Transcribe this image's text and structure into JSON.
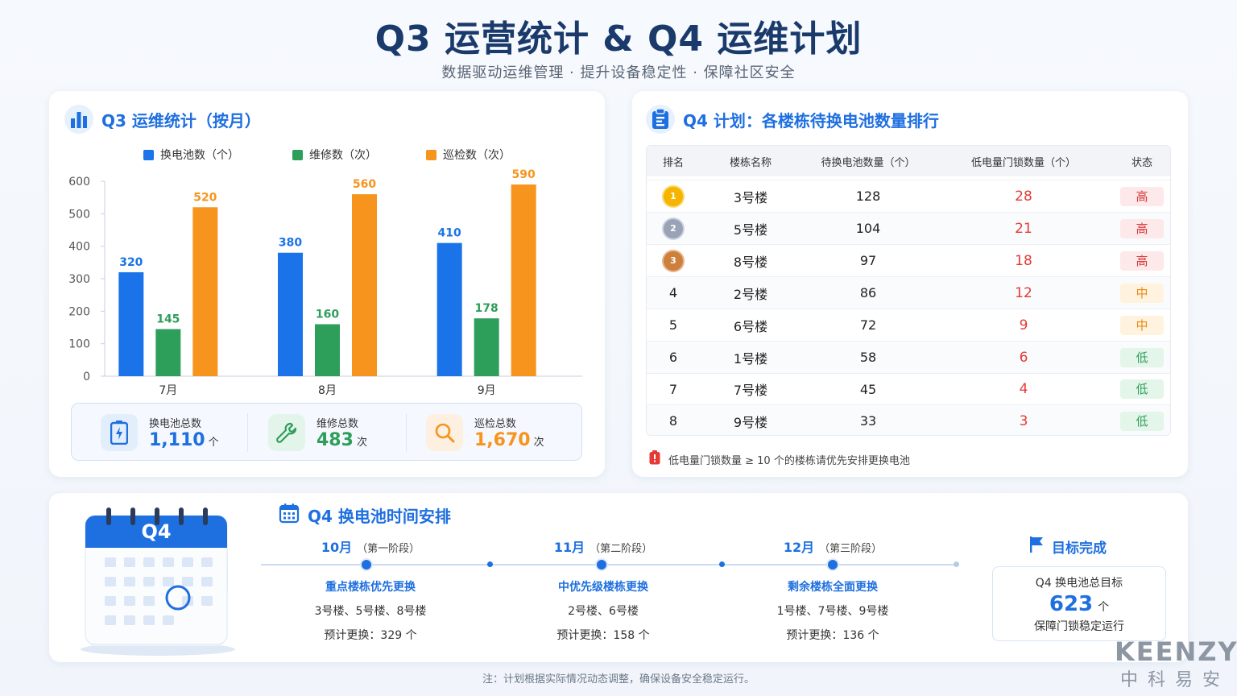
{
  "header": {
    "title": "Q3 运营统计 & Q4 运维计划",
    "subtitle": "数据驱动运维管理 · 提升设备稳定性 · 保障社区安全"
  },
  "colors": {
    "battery": "#1a73e8",
    "repair": "#2e9e5b",
    "inspect": "#f7941d",
    "accent": "#1e6fe0"
  },
  "q3": {
    "title": "Q3 运维统计（按月）",
    "summary": [
      {
        "label": "换电池总数",
        "value": "1,110",
        "unit": "个",
        "icon": "battery-icon"
      },
      {
        "label": "维修总数",
        "value": "483",
        "unit": "次",
        "icon": "wrench-icon"
      },
      {
        "label": "巡检总数",
        "value": "1,670",
        "unit": "次",
        "icon": "search-icon"
      }
    ]
  },
  "chart_data": {
    "type": "bar",
    "categories": [
      "7月",
      "8月",
      "9月"
    ],
    "series": [
      {
        "name": "换电池数（个）",
        "values": [
          320,
          380,
          410
        ],
        "color": "#1a73e8"
      },
      {
        "name": "维修数（次）",
        "values": [
          145,
          160,
          178
        ],
        "color": "#2e9e5b"
      },
      {
        "name": "巡检数（次）",
        "values": [
          520,
          560,
          590
        ],
        "color": "#f7941d"
      }
    ],
    "ylim": [
      0,
      600
    ],
    "yticks": [
      0,
      100,
      200,
      300,
      400,
      500,
      600
    ],
    "legend_position": "top",
    "grid": false
  },
  "q4": {
    "title": "Q4 计划：各楼栋待换电池数量排行",
    "columns": [
      "排名",
      "楼栋名称",
      "待换电池数量（个）",
      "低电量门锁数量（个）",
      "状态"
    ],
    "rows": [
      {
        "rank": "1",
        "name": "3号楼",
        "qty": "128",
        "low": "28",
        "status": "高",
        "level": "high"
      },
      {
        "rank": "2",
        "name": "5号楼",
        "qty": "104",
        "low": "21",
        "status": "高",
        "level": "high"
      },
      {
        "rank": "3",
        "name": "8号楼",
        "qty": "97",
        "low": "18",
        "status": "高",
        "level": "high"
      },
      {
        "rank": "4",
        "name": "2号楼",
        "qty": "86",
        "low": "12",
        "status": "中",
        "level": "mid"
      },
      {
        "rank": "5",
        "name": "6号楼",
        "qty": "72",
        "low": "9",
        "status": "中",
        "level": "mid"
      },
      {
        "rank": "6",
        "name": "1号楼",
        "qty": "58",
        "low": "6",
        "status": "低",
        "level": "low"
      },
      {
        "rank": "7",
        "name": "7号楼",
        "qty": "45",
        "low": "4",
        "status": "低",
        "level": "low"
      },
      {
        "rank": "8",
        "name": "9号楼",
        "qty": "33",
        "low": "3",
        "status": "低",
        "level": "low"
      }
    ],
    "note": "低电量门锁数量 ≥ 10 个的楼栋请优先安排更换电池"
  },
  "schedule": {
    "title": "Q4 换电池时间安排",
    "calendar_label": "Q4",
    "phases": [
      {
        "month": "10月",
        "stage": "（第一阶段）",
        "title": "重点楼栋优先更换",
        "buildings": "3号楼、5号楼、8号楼",
        "estimate": "预计更换：329 个"
      },
      {
        "month": "11月",
        "stage": "（第二阶段）",
        "title": "中优先级楼栋更换",
        "buildings": "2号楼、6号楼",
        "estimate": "预计更换：158 个"
      },
      {
        "month": "12月",
        "stage": "（第三阶段）",
        "title": "剩余楼栋全面更换",
        "buildings": "1号楼、7号楼、9号楼",
        "estimate": "预计更换：136 个"
      }
    ],
    "goal": {
      "heading": "目标完成",
      "label": "Q4 换电池总目标",
      "value": "623",
      "unit": "个",
      "caption": "保障门锁稳定运行"
    }
  },
  "footer": {
    "note": "注：计划根据实际情况动态调整，确保设备安全稳定运行。",
    "brand_en": "KEENZY",
    "brand_cn": "中科易安"
  }
}
